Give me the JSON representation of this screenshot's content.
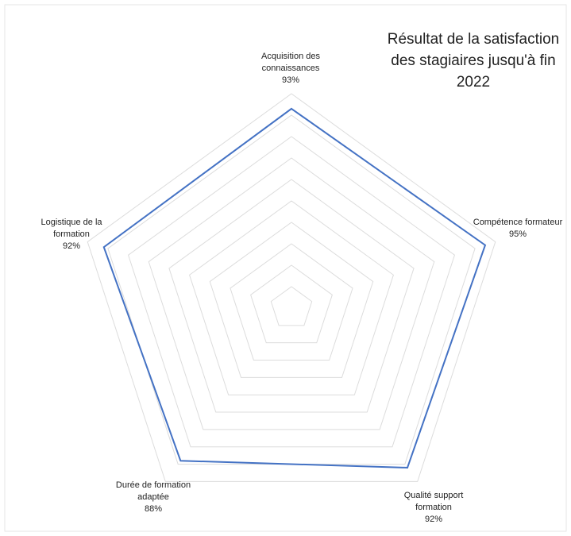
{
  "chart_data": {
    "type": "radar",
    "title": "Résultat de la satisfaction des stagiaires jusqu'à fin 2022",
    "categories": [
      "Acquisition des connaissances",
      "Compétence formateur",
      "Qualité support formation",
      "Durée de formation adaptée",
      "Logistique de la formation"
    ],
    "series": [
      {
        "color": "#4472c4",
        "values": [
          93,
          95,
          92,
          88,
          92
        ],
        "value_labels": [
          "93%",
          "95%",
          "92%",
          "88%",
          "92%"
        ]
      }
    ],
    "ylim": [
      0,
      100
    ],
    "yticks": [
      0,
      10,
      20,
      30,
      40,
      50,
      60,
      70,
      80,
      90,
      100
    ],
    "grid": true
  }
}
